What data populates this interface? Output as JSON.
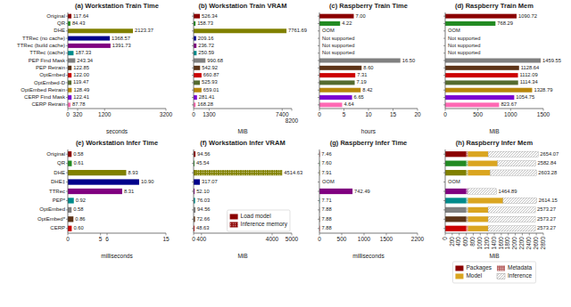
{
  "chart_data": [
    {
      "type": "bar",
      "orientation": "horizontal",
      "title": "(a) Workstation Train Time",
      "xlabel": "seconds",
      "categories": [
        "Original",
        "QR",
        "DHE",
        "TTRec (no cache)",
        "TTRec (build cache)",
        "TTRec (cache)",
        "PEP Find Mask",
        "PEP Retrain",
        "OptEmbed",
        "OptEmbed-D",
        "OptEmbed Retrain",
        "CERP Find Mask",
        "CERP Retrain"
      ],
      "values": [
        117.64,
        84.43,
        2123.37,
        1368.57,
        1391.73,
        187.33,
        243.34,
        122.85,
        122.0,
        119.47,
        128.49,
        122.41,
        87.78
      ],
      "value_labels": [
        "117.64",
        "84.43",
        "2123.37",
        "1368.57",
        "1391.73",
        "187.33",
        "243.34",
        "122.85",
        "122.00",
        "119.47",
        "128.49",
        "122.41",
        "87.78"
      ],
      "colors": [
        "#8b0000",
        "#228b22",
        "#808000",
        "#00008b",
        "#800080",
        "#008b8b",
        "#808080",
        "#5c3317",
        "#cc0000",
        "#556b2f",
        "#b8860b",
        "#7b00d4",
        "#ff69b4"
      ],
      "data_labels": true,
      "xlim": [
        0,
        3200
      ],
      "xticks": [
        0,
        320,
        1200,
        3200
      ]
    },
    {
      "type": "bar",
      "orientation": "horizontal",
      "title": "(b) Workstation Train VRAM",
      "xlabel": "MiB",
      "categories": [
        "Original",
        "QR",
        "DHE",
        "TTRec (no cache)",
        "TTRec (build cache)",
        "TTRec (cache)",
        "PEP Find Mask",
        "PEP Retrain",
        "OptEmbed",
        "OptEmbed-D",
        "OptEmbed Retrain",
        "CERP Find Mask",
        "CERP Retrain"
      ],
      "values": [
        526.34,
        158.73,
        7761.69,
        209.16,
        236.72,
        250.59,
        990.68,
        542.92,
        660.87,
        525.93,
        659.01,
        281.41,
        168.28
      ],
      "value_labels": [
        "526.34",
        "158.73",
        "7761.69",
        "209.16",
        "236.72",
        "250.59",
        "990.68",
        "542.92",
        "660.87",
        "525.93",
        "659.01",
        "281.41",
        "168.28"
      ],
      "colors": [
        "#8b0000",
        "#228b22",
        "#808000",
        "#00008b",
        "#800080",
        "#008b8b",
        "#808080",
        "#5c3317",
        "#cc0000",
        "#556b2f",
        "#b8860b",
        "#7b00d4",
        "#ff69b4"
      ],
      "data_labels": true,
      "tick_labels": "x",
      "xlim": [
        0,
        8200
      ],
      "xticks": [
        0,
        1300,
        7400,
        8200
      ]
    },
    {
      "type": "bar",
      "orientation": "horizontal",
      "title": "(c) Raspberry Train Time",
      "xlabel": "hours",
      "categories": [
        "Original",
        "QR",
        "DHE",
        "TTRec (no cache)",
        "TTRec (build cache)",
        "TTRec (cache)",
        "PEP Find Mask",
        "PEP Retrain",
        "OptEmbed",
        "OptEmbed-D",
        "OptEmbed Retrain",
        "CERP Find Mask",
        "CERP Retrain"
      ],
      "values": [
        7.0,
        4.22,
        null,
        null,
        null,
        null,
        16.5,
        8.6,
        7.31,
        7.19,
        8.42,
        6.65,
        4.64
      ],
      "value_labels": [
        "7.00",
        "4.22",
        null,
        null,
        null,
        null,
        "16.50",
        "8.60",
        "7.31",
        "7.19",
        "8.42",
        "6.65",
        "4.64"
      ],
      "colors": [
        "#8b0000",
        "#228b22",
        "#808000",
        "#00008b",
        "#800080",
        "#008b8b",
        "#808080",
        "#5c3317",
        "#cc0000",
        "#556b2f",
        "#b8860b",
        "#7b00d4",
        "#ff69b4"
      ],
      "annotations": [
        {
          "category": "DHE",
          "text": "OOM"
        },
        {
          "category": "TTRec (no cache)",
          "text": "Not supported"
        },
        {
          "category": "TTRec (build cache)",
          "text": "Not supported"
        },
        {
          "category": "TTRec (cache)",
          "text": "Not supported"
        }
      ],
      "data_labels": true,
      "tick_labels": "x",
      "xlim": [
        0,
        20
      ],
      "xticks": [
        0,
        5,
        10,
        15,
        20
      ]
    },
    {
      "type": "bar",
      "orientation": "horizontal",
      "title": "(d) Raspberry Train Mem",
      "xlabel": "MiB",
      "categories": [
        "Original",
        "QR",
        "DHE",
        "TTRec (no cache)",
        "TTRec (build cache)",
        "TTRec (cache)",
        "PEP Find Mask",
        "PEP Retrain",
        "OptEmbed",
        "OptEmbed-D",
        "OptEmbed Retrain",
        "CERP Find Mask",
        "CERP Retrain"
      ],
      "values": [
        1090.72,
        768.29,
        null,
        null,
        null,
        null,
        1459.55,
        1128.64,
        1112.09,
        1114.34,
        1328.79,
        1054.75,
        823.67
      ],
      "value_labels": [
        "1090.72",
        "768.29",
        null,
        null,
        null,
        null,
        "1459.55",
        "1128.64",
        "1112.09",
        "1114.34",
        "1328.79",
        "1054.75",
        "823.67"
      ],
      "colors": [
        "#8b0000",
        "#228b22",
        "#808000",
        "#00008b",
        "#800080",
        "#008b8b",
        "#808080",
        "#5c3317",
        "#cc0000",
        "#556b2f",
        "#b8860b",
        "#7b00d4",
        "#ff69b4"
      ],
      "annotations": [
        {
          "category": "DHE",
          "text": "OOM"
        },
        {
          "category": "TTRec (no cache)",
          "text": "Not supported"
        },
        {
          "category": "TTRec (build cache)",
          "text": "Not supported"
        },
        {
          "category": "TTRec (cache)",
          "text": "Not supported"
        }
      ],
      "data_labels": true,
      "tick_labels": "x",
      "xlim": [
        0,
        1500
      ],
      "xticks": [
        0,
        500,
        1000,
        1500
      ]
    },
    {
      "type": "bar",
      "orientation": "horizontal",
      "title": "(e) Workstation Infer Time",
      "xlabel": "milliseconds",
      "categories": [
        "Original",
        "QR",
        "DHE",
        "DHE‡",
        "TTRec",
        "PEP*",
        "OptEmbed",
        "OptEmbed*",
        "CERP"
      ],
      "values": [
        0.58,
        0.61,
        8.93,
        10.9,
        8.31,
        0.92,
        0.58,
        0.86,
        0.6
      ],
      "value_labels": [
        "0.58",
        "0.61",
        "8.93",
        "10.90",
        "8.31",
        "0.92",
        "0.58",
        "0.86",
        "0.60"
      ],
      "colors": [
        "#8b0000",
        "#228b22",
        "#808000",
        "#00008b",
        "#800080",
        "#008b8b",
        "#808080",
        "#5c3317",
        "#cc0000"
      ],
      "data_labels": true,
      "xlim": [
        0,
        15
      ],
      "xticks": [
        0,
        5,
        6,
        15
      ]
    },
    {
      "type": "bar",
      "orientation": "horizontal",
      "stacked": true,
      "title": "(f) Workstation Infer VRAM",
      "xlabel": "MiB",
      "categories": [
        "Original",
        "QR",
        "DHE",
        "DHE‡",
        "TTRec",
        "PEP*",
        "OptEmbed",
        "OptEmbed*",
        "CERP"
      ],
      "series": [
        {
          "name": "Load model",
          "color": "#8b0000",
          "colors": [
            "#8b0000",
            "#228b22",
            "#808000",
            "#00008b",
            "#800080",
            "#008b8b",
            "#808080",
            "#5c3317",
            "#cc0000"
          ],
          "values": [
            94.56,
            45.54,
            94.56,
            317.07,
            52.1,
            76.03,
            94.56,
            72.66,
            48.63
          ]
        },
        {
          "name": "Inference memory",
          "color": "#8b0000",
          "colors": [
            "#8b0000",
            "#228b22",
            "#808000",
            "#00008b",
            "#800080",
            "#008b8b",
            "#808080",
            "#5c3317",
            "#cc0000"
          ],
          "values": [
            0,
            0,
            4420.07,
            0,
            0,
            0,
            0,
            0,
            0
          ]
        }
      ],
      "totals": [
        94.56,
        45.54,
        4514.63,
        317.07,
        52.1,
        76.03,
        94.56,
        72.66,
        48.63
      ],
      "total_labels": [
        "94.56",
        "45.54",
        "4514.63",
        "317.07",
        "52.10",
        "76.03",
        "94.56",
        "72.66",
        "48.63"
      ],
      "legend": "lower right",
      "tick_labels": "x",
      "xlim": [
        0,
        5000
      ],
      "xticks": [
        0,
        400,
        4000,
        5000
      ]
    },
    {
      "type": "bar",
      "orientation": "horizontal",
      "title": "(g) Raspberry Infer Time",
      "xlabel": "milliseconds",
      "categories": [
        "Original",
        "QR",
        "DHE",
        "DHE‡",
        "TTRec",
        "PEP*",
        "OptEmbed",
        "OptEmbed*",
        "CERP"
      ],
      "values": [
        7.46,
        7.6,
        7.91,
        null,
        742.49,
        7.71,
        7.88,
        7.88,
        7.88
      ],
      "value_labels": [
        "7.46",
        "7.60",
        "7.91",
        null,
        "742.49",
        "7.71",
        "7.88",
        "7.88",
        "7.88"
      ],
      "colors": [
        "#8b0000",
        "#228b22",
        "#808000",
        "#00008b",
        "#800080",
        "#008b8b",
        "#808080",
        "#5c3317",
        "#cc0000"
      ],
      "annotations": [
        {
          "category": "DHE‡",
          "text": "OOM"
        }
      ],
      "data_labels": true,
      "tick_labels": "x",
      "xlim": [
        0,
        2200
      ],
      "xticks": [
        0,
        500,
        1000,
        1500,
        2200
      ]
    },
    {
      "type": "bar",
      "orientation": "horizontal",
      "stacked": true,
      "title": "(h) Raspberry Infer Mem",
      "xlabel": "MiB",
      "categories": [
        "Original",
        "QR",
        "DHE",
        "DHE‡",
        "TTRec",
        "PEP*",
        "OptEmbed",
        "OptEmbed*",
        "CERP"
      ],
      "series": [
        {
          "name": "Packages",
          "color": "#8b0000",
          "colors": [
            "#8b0000",
            "#228b22",
            "#808000",
            "#00008b",
            "#800080",
            "#008b8b",
            "#808080",
            "#5c3317",
            "#cc0000"
          ],
          "values": [
            600,
            600,
            600,
            null,
            600,
            600,
            600,
            600,
            600
          ]
        },
        {
          "name": "Metadata",
          "color": "#8b0000",
          "colors": [
            "#8b0000",
            "#228b22",
            "#808000",
            "#00008b",
            "#800080",
            "#008b8b",
            "#808080",
            "#5c3317",
            "#cc0000"
          ],
          "values": [
            50,
            50,
            50,
            null,
            50,
            50,
            50,
            50,
            50
          ]
        },
        {
          "name": "Model",
          "color": "#daa520",
          "values": [
            574.44,
            844.6,
            634.15,
            null,
            0,
            999.91,
            573.27,
            573.27,
            573.27
          ]
        },
        {
          "name": "Inference",
          "color": "#ffffff",
          "values": [
            1429.63,
            1087.84,
            1319.13,
            null,
            814.89,
            963.24,
            1349.73,
            1349.73,
            1349.73
          ]
        }
      ],
      "totals": [
        2654.07,
        2582.84,
        2603.28,
        null,
        1464.89,
        2614.15,
        2573.27,
        2573.27,
        2573.27
      ],
      "total_labels": [
        "2654.07",
        "2582.84",
        "2603.28",
        null,
        "1464.89",
        "2614.15",
        "2573.27",
        "2573.27",
        "2573.27"
      ],
      "annotations": [
        {
          "category": "DHE‡",
          "text": "OOM"
        }
      ],
      "legend": "bottom",
      "tick_labels": "x",
      "xlim": [
        0,
        2800
      ],
      "xticks": [
        0,
        200,
        400,
        600,
        800,
        1000,
        1200,
        1400,
        1600,
        1800,
        2000,
        2200,
        2400,
        2600,
        2800
      ]
    }
  ]
}
